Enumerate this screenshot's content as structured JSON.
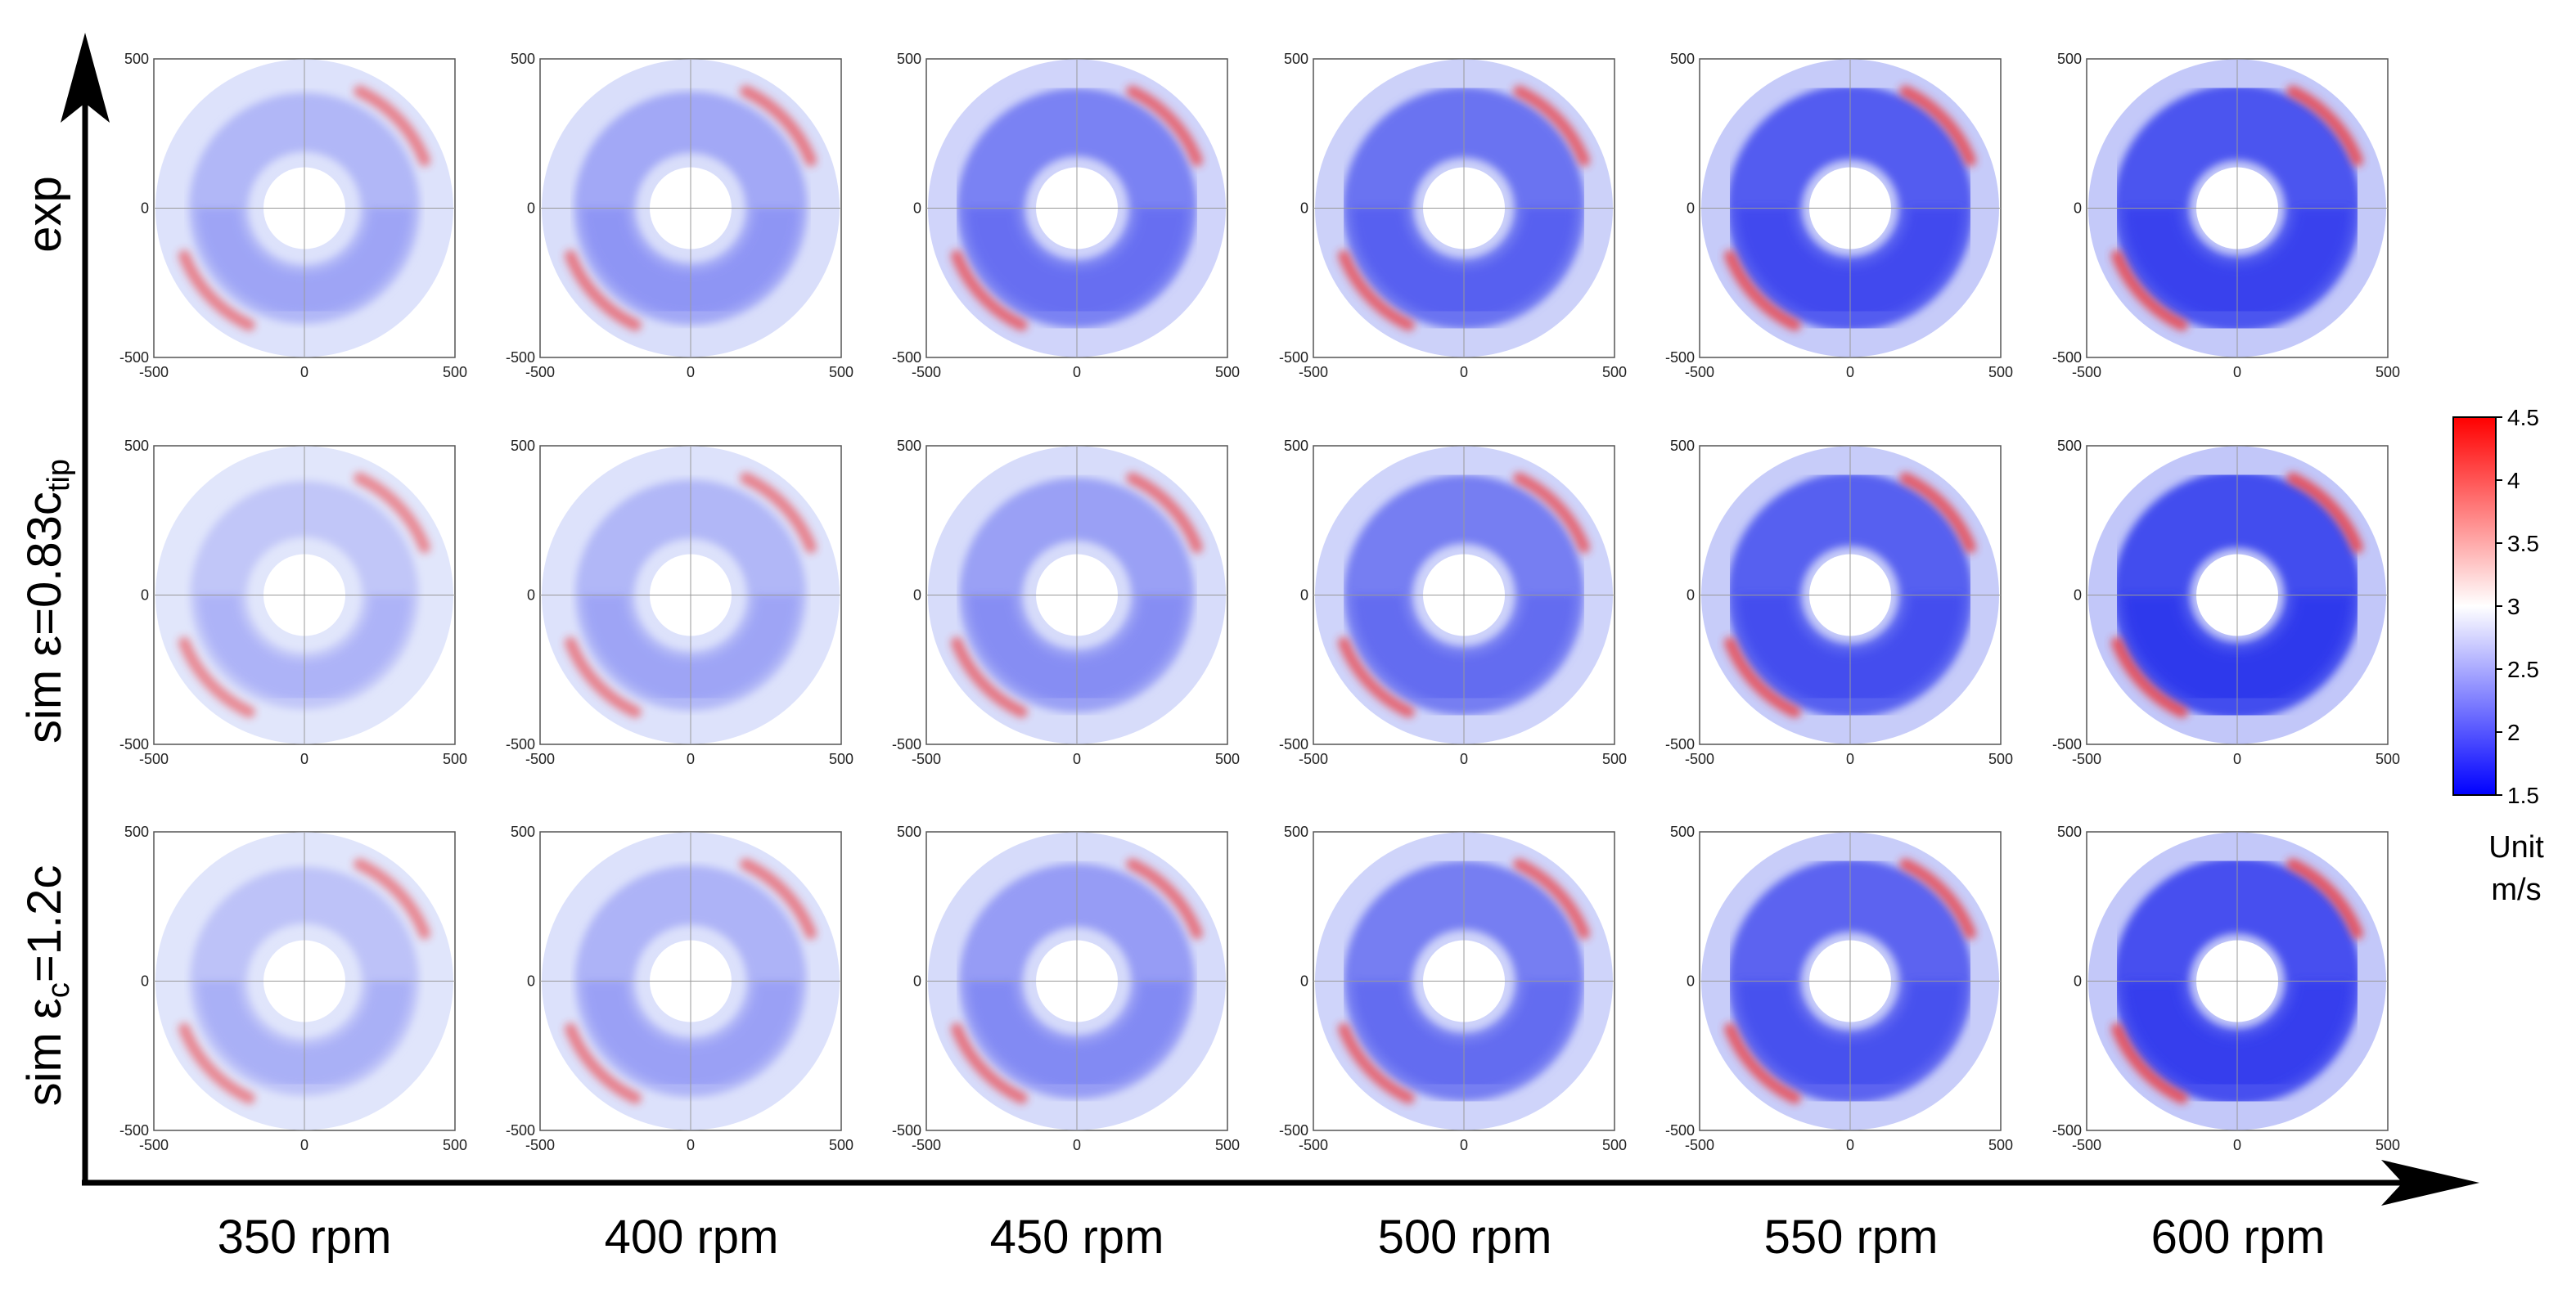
{
  "chart_data": {
    "type": "heatmap",
    "title": "",
    "rows": [
      {
        "label": "exp",
        "label_sub": ""
      },
      {
        "label": "sim ε=0.83c",
        "label_sub": "tip"
      },
      {
        "label": "sim ε",
        "label_sub": "c",
        "label_tail": "=1.2c"
      }
    ],
    "columns": [
      "350 rpm",
      "400 rpm",
      "450 rpm",
      "500 rpm",
      "550 rpm",
      "600 rpm"
    ],
    "panel_axis": {
      "xlim": [
        -500,
        500
      ],
      "ylim": [
        -500,
        500
      ],
      "x_ticks": [
        "-500",
        "0",
        "500"
      ],
      "y_ticks": [
        "500",
        "0",
        "-500"
      ]
    },
    "field_intensity": [
      [
        0.3,
        0.38,
        0.58,
        0.66,
        0.78,
        0.82
      ],
      [
        0.22,
        0.3,
        0.42,
        0.6,
        0.76,
        0.86
      ],
      [
        0.24,
        0.32,
        0.44,
        0.6,
        0.74,
        0.84
      ]
    ],
    "colorbar": {
      "min": 1.5,
      "max": 4.5,
      "ticks": [
        "4.5",
        "4",
        "3.5",
        "3",
        "2.5",
        "2",
        "1.5"
      ],
      "unit_label": "Unit",
      "unit": "m/s",
      "colors": [
        "#0000ff",
        "#ffffff",
        "#ff0000"
      ]
    }
  }
}
